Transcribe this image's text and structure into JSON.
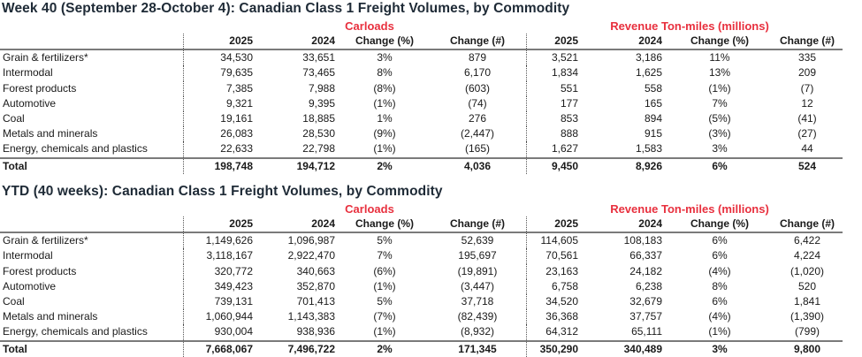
{
  "sections": [
    {
      "title": "Week 40 (September 28-October 4): Canadian Class 1 Freight Volumes, by Commodity",
      "group_labels": {
        "carloads": "Carloads",
        "revenue": "Revenue Ton-miles (millions)"
      },
      "columns": [
        "",
        "2025",
        "2024",
        "Change (%)",
        "Change (#)",
        "2025",
        "2024",
        "Change (%)",
        "Change (#)"
      ],
      "rows": [
        [
          "Grain & fertilizers*",
          "34,530",
          "33,651",
          "3%",
          "879",
          "3,521",
          "3,186",
          "11%",
          "335"
        ],
        [
          "Intermodal",
          "79,635",
          "73,465",
          "8%",
          "6,170",
          "1,834",
          "1,625",
          "13%",
          "209"
        ],
        [
          "Forest products",
          "7,385",
          "7,988",
          "(8%)",
          "(603)",
          "551",
          "558",
          "(1%)",
          "(7)"
        ],
        [
          "Automotive",
          "9,321",
          "9,395",
          "(1%)",
          "(74)",
          "177",
          "165",
          "7%",
          "12"
        ],
        [
          "Coal",
          "19,161",
          "18,885",
          "1%",
          "276",
          "853",
          "894",
          "(5%)",
          "(41)"
        ],
        [
          "Metals and minerals",
          "26,083",
          "28,530",
          "(9%)",
          "(2,447)",
          "888",
          "915",
          "(3%)",
          "(27)"
        ],
        [
          "Energy, chemicals and plastics",
          "22,633",
          "22,798",
          "(1%)",
          "(165)",
          "1,627",
          "1,583",
          "3%",
          "44"
        ]
      ],
      "total": [
        "Total",
        "198,748",
        "194,712",
        "2%",
        "4,036",
        "9,450",
        "8,926",
        "6%",
        "524"
      ]
    },
    {
      "title": "YTD (40 weeks): Canadian Class 1 Freight Volumes, by Commodity",
      "group_labels": {
        "carloads": "Carloads",
        "revenue": "Revenue Ton-miles (millions)"
      },
      "columns": [
        "",
        "2025",
        "2024",
        "Change (%)",
        "Change (#)",
        "2025",
        "2024",
        "Change (%)",
        "Change (#)"
      ],
      "rows": [
        [
          "Grain & fertilizers*",
          "1,149,626",
          "1,096,987",
          "5%",
          "52,639",
          "114,605",
          "108,183",
          "6%",
          "6,422"
        ],
        [
          "Intermodal",
          "3,118,167",
          "2,922,470",
          "7%",
          "195,697",
          "70,561",
          "66,337",
          "6%",
          "4,224"
        ],
        [
          "Forest products",
          "320,772",
          "340,663",
          "(6%)",
          "(19,891)",
          "23,163",
          "24,182",
          "(4%)",
          "(1,020)"
        ],
        [
          "Automotive",
          "349,423",
          "352,870",
          "(1%)",
          "(3,447)",
          "6,758",
          "6,238",
          "8%",
          "520"
        ],
        [
          "Coal",
          "739,131",
          "701,413",
          "5%",
          "37,718",
          "34,520",
          "32,679",
          "6%",
          "1,841"
        ],
        [
          "Metals and minerals",
          "1,060,944",
          "1,143,383",
          "(7%)",
          "(82,439)",
          "36,368",
          "37,757",
          "(4%)",
          "(1,390)"
        ],
        [
          "Energy, chemicals and plastics",
          "930,004",
          "938,936",
          "(1%)",
          "(8,932)",
          "64,312",
          "65,111",
          "(1%)",
          "(799)"
        ]
      ],
      "total": [
        "Total",
        "7,668,067",
        "7,496,722",
        "2%",
        "171,345",
        "350,290",
        "340,489",
        "3%",
        "9,800"
      ]
    }
  ],
  "colors": {
    "group_label": "#e8303e",
    "title": "#1e2a36"
  }
}
